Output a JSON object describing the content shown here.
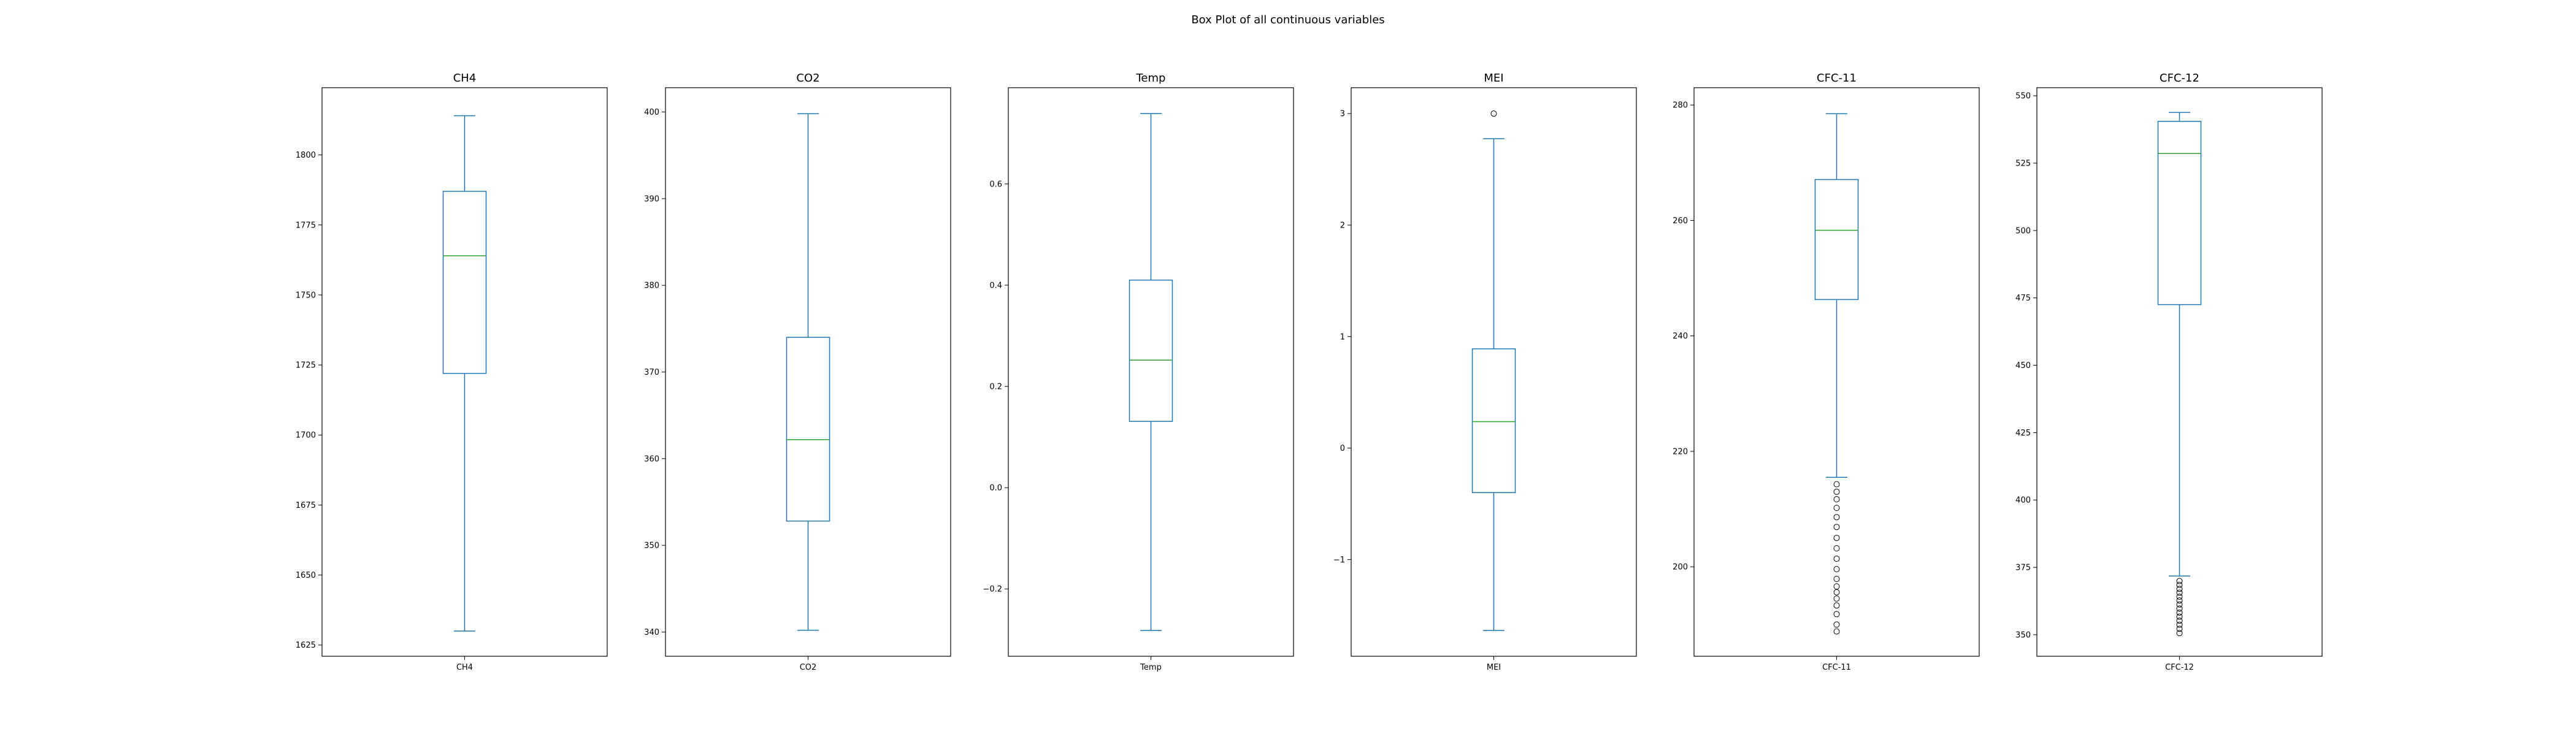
{
  "figure": {
    "suptitle": "Box Plot of all continuous variables"
  },
  "colors": {
    "box": "#1f77b4",
    "median": "#2ca02c",
    "axes": "#000000",
    "background": "#ffffff"
  },
  "chart_data": [
    {
      "type": "box",
      "title": "CH4",
      "categories": [
        "CH4"
      ],
      "whisker_low": 1630,
      "q1": 1722,
      "median": 1764,
      "q3": 1787,
      "whisker_high": 1814,
      "outliers": [],
      "ylim": [
        1621,
        1824
      ],
      "yticks": [
        1625,
        1650,
        1675,
        1700,
        1725,
        1750,
        1775,
        1800
      ],
      "ytick_labels": [
        "1625",
        "1650",
        "1675",
        "1700",
        "1725",
        "1750",
        "1775",
        "1800"
      ]
    },
    {
      "type": "box",
      "title": "CO2",
      "categories": [
        "CO2"
      ],
      "whisker_low": 340.2,
      "q1": 352.8,
      "median": 362.2,
      "q3": 374.0,
      "whisker_high": 399.8,
      "outliers": [],
      "ylim": [
        337.2,
        402.8
      ],
      "yticks": [
        340,
        350,
        360,
        370,
        380,
        390,
        400
      ],
      "ytick_labels": [
        "340",
        "350",
        "360",
        "370",
        "380",
        "390",
        "400"
      ]
    },
    {
      "type": "box",
      "title": "Temp",
      "categories": [
        "Temp"
      ],
      "whisker_low": -0.282,
      "q1": 0.131,
      "median": 0.252,
      "q3": 0.41,
      "whisker_high": 0.739,
      "outliers": [],
      "ylim": [
        -0.333,
        0.79
      ],
      "yticks": [
        -0.2,
        0.0,
        0.2,
        0.4,
        0.6
      ],
      "ytick_labels": [
        "−0.2",
        "0.0",
        "0.2",
        "0.4",
        "0.6"
      ]
    },
    {
      "type": "box",
      "title": "MEI",
      "categories": [
        "MEI"
      ],
      "whisker_low": -1.635,
      "q1": -0.399,
      "median": 0.237,
      "q3": 0.89,
      "whisker_high": 2.775,
      "outliers": [
        3.0
      ],
      "ylim": [
        -1.867,
        3.232
      ],
      "yticks": [
        -1,
        0,
        1,
        2,
        3
      ],
      "ytick_labels": [
        "−1",
        "0",
        "1",
        "2",
        "3"
      ]
    },
    {
      "type": "box",
      "title": "CFC-11",
      "categories": [
        "CFC-11"
      ],
      "whisker_low": 215.5,
      "q1": 246.3,
      "median": 258.3,
      "q3": 267.1,
      "whisker_high": 278.5,
      "outliers": [
        214.3,
        213.0,
        211.7,
        210.2,
        208.6,
        206.9,
        205.0,
        203.2,
        201.4,
        199.6,
        197.9,
        196.6,
        195.6,
        194.5,
        193.3,
        191.8,
        190.0,
        188.8
      ],
      "ylim": [
        184.5,
        283.0
      ],
      "yticks": [
        200,
        220,
        240,
        260,
        280
      ],
      "ytick_labels": [
        "200",
        "220",
        "240",
        "260",
        "280"
      ]
    },
    {
      "type": "box",
      "title": "CFC-12",
      "categories": [
        "CFC-12"
      ],
      "whisker_low": 371.8,
      "q1": 472.5,
      "median": 528.6,
      "q3": 540.5,
      "whisker_high": 543.8,
      "outliers": [
        369.9,
        368.5,
        367.0,
        365.6,
        364.1,
        362.7,
        361.2,
        359.7,
        358.2,
        356.7,
        355.2,
        353.7,
        352.2,
        350.6
      ],
      "ylim": [
        342.0,
        553.0
      ],
      "yticks": [
        350,
        375,
        400,
        425,
        450,
        475,
        500,
        525,
        550
      ],
      "ytick_labels": [
        "350",
        "375",
        "400",
        "425",
        "450",
        "475",
        "500",
        "525",
        "550"
      ]
    }
  ]
}
